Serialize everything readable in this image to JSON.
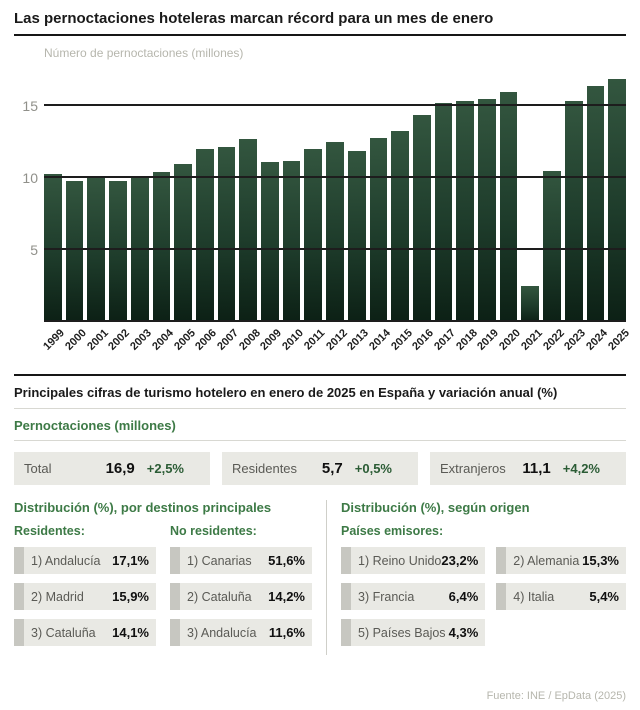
{
  "header": {
    "title": "Las pernoctaciones hoteleras marcan récord para un mes de enero"
  },
  "chart_data": {
    "type": "bar",
    "ylabel": "Número de pernoctaciones (millones)",
    "categories": [
      "1999",
      "2000",
      "2001",
      "2002",
      "2003",
      "2004",
      "2005",
      "2006",
      "2007",
      "2008",
      "2009",
      "2010",
      "2011",
      "2012",
      "2013",
      "2014",
      "2015",
      "2016",
      "2017",
      "2018",
      "2019",
      "2020",
      "2021",
      "2022",
      "2023",
      "2024",
      "2025"
    ],
    "values": [
      10.3,
      9.8,
      10.0,
      9.8,
      10.0,
      10.4,
      11.0,
      12.0,
      12.2,
      12.7,
      11.1,
      11.2,
      12.0,
      12.5,
      11.9,
      12.8,
      13.3,
      14.4,
      15.2,
      15.4,
      15.5,
      16.0,
      2.5,
      10.5,
      15.4,
      16.4,
      16.9
    ],
    "yticks": [
      5,
      10,
      15
    ],
    "ylim": [
      0,
      17.8
    ],
    "grid": "horizontal",
    "legend": "none",
    "bar_color_top": "#33563f",
    "bar_color_bottom": "#0c2015"
  },
  "cifras": {
    "title": "Principales cifras de turismo hotelero en enero de 2025 en España y variación anual (%)",
    "subtitle": "Pernoctaciones (millones)",
    "stats": [
      {
        "label": "Total",
        "value": "16,9",
        "change": "+2,5%"
      },
      {
        "label": "Residentes",
        "value": "5,7",
        "change": "+0,5%"
      },
      {
        "label": "Extranjeros",
        "value": "11,1",
        "change": "+4,2%"
      }
    ]
  },
  "destinos": {
    "title": "Distribución (%), por destinos principales",
    "residentes_label": "Residentes:",
    "residentes": [
      {
        "label": "1) Andalucía",
        "value": "17,1%"
      },
      {
        "label": "2) Madrid",
        "value": "15,9%"
      },
      {
        "label": "3) Cataluña",
        "value": "14,1%"
      }
    ],
    "no_residentes_label": "No residentes:",
    "no_residentes": [
      {
        "label": "1) Canarias",
        "value": "51,6%"
      },
      {
        "label": "2) Cataluña",
        "value": "14,2%"
      },
      {
        "label": "3) Andalucía",
        "value": "11,6%"
      }
    ]
  },
  "origen": {
    "title": "Distribución (%), según origen",
    "paises_label": "Países emisores:",
    "items": [
      {
        "label": "1) Reino Unido",
        "value": "23,2%"
      },
      {
        "label": "2) Alemania",
        "value": "15,3%"
      },
      {
        "label": "3) Francia",
        "value": "6,4%"
      },
      {
        "label": "4) Italia",
        "value": "5,4%"
      },
      {
        "label": "5) Países Bajos",
        "value": "4,3%"
      }
    ]
  },
  "footer": {
    "source": "Fuente: INE / EpData (2025)"
  },
  "colors": {
    "accent_green": "#3d7a46",
    "bar_green_dark": "#0c2015",
    "box_gray": "#e9e9e4"
  }
}
